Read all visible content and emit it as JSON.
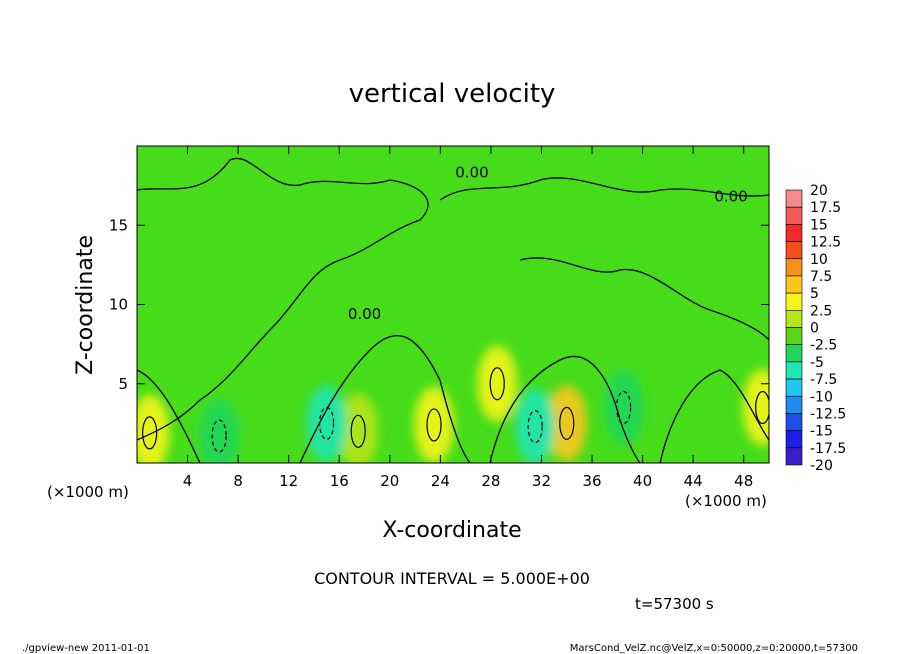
{
  "chart_data": {
    "type": "heatmap",
    "title": "vertical velocity",
    "xlabel": "X-coordinate",
    "ylabel": "Z-coordinate",
    "x_unit_left": "(×1000 m)",
    "x_unit_right": "(×1000 m)",
    "xlim": [
      0,
      50
    ],
    "ylim": [
      0,
      20
    ],
    "xticks": [
      "4",
      "8",
      "12",
      "16",
      "20",
      "24",
      "28",
      "32",
      "36",
      "40",
      "44",
      "48"
    ],
    "xtick_values": [
      4,
      8,
      12,
      16,
      20,
      24,
      28,
      32,
      36,
      40,
      44,
      48
    ],
    "yticks": [
      "5",
      "10",
      "15"
    ],
    "ytick_values": [
      5,
      10,
      15
    ],
    "contour_labels": [
      {
        "text": "0.00",
        "x": 26.5,
        "y": 18.0
      },
      {
        "text": "0.00",
        "x": 47.0,
        "y": 16.5
      },
      {
        "text": "0.00",
        "x": 18.0,
        "y": 9.1
      }
    ],
    "positive_cores": [
      {
        "x": 1.0,
        "y": 1.9,
        "w": 0.0
      },
      {
        "x": 17.5,
        "y": 2.0,
        "w": 3.5
      },
      {
        "x": 23.5,
        "y": 2.4,
        "w": 6.0
      },
      {
        "x": 28.5,
        "y": 5.0,
        "w": 4.5
      },
      {
        "x": 34.0,
        "y": 2.5,
        "w": 7.0
      },
      {
        "x": 49.5,
        "y": 3.5,
        "w": 4.0
      }
    ],
    "negative_cores": [
      {
        "x": 6.5,
        "y": 1.7,
        "w": -3.5
      },
      {
        "x": 15.0,
        "y": 2.5,
        "w": -6.0
      },
      {
        "x": 31.5,
        "y": 2.3,
        "w": -4.0
      },
      {
        "x": 38.5,
        "y": 3.5,
        "w": -3.0
      }
    ],
    "colorbar": {
      "labels": [
        "20",
        "17.5",
        "15",
        "12.5",
        "10",
        "7.5",
        "5",
        "2.5",
        "0",
        "-2.5",
        "-5",
        "-7.5",
        "-10",
        "-12.5",
        "-15",
        "-17.5",
        "-20"
      ],
      "colors": [
        "#f78a8a",
        "#f55a5a",
        "#f22a2a",
        "#f24f1a",
        "#f7901a",
        "#fcc61c",
        "#f5f51a",
        "#b5e61a",
        "#5ad61a",
        "#1ed65a",
        "#1ee6b4",
        "#1ec8f0",
        "#1e8cf0",
        "#1e50e6",
        "#1e1ee6",
        "#3c1ec8",
        "#781eb4"
      ]
    },
    "contour_interval": "CONTOUR INTERVAL = 5.000E+00",
    "time": "t=57300 s"
  },
  "footer": {
    "left": "./gpview-new  2011-01-01",
    "right": "MarsCond_VelZ.nc@VelZ,x=0:50000,z=0:20000,t=57300"
  }
}
